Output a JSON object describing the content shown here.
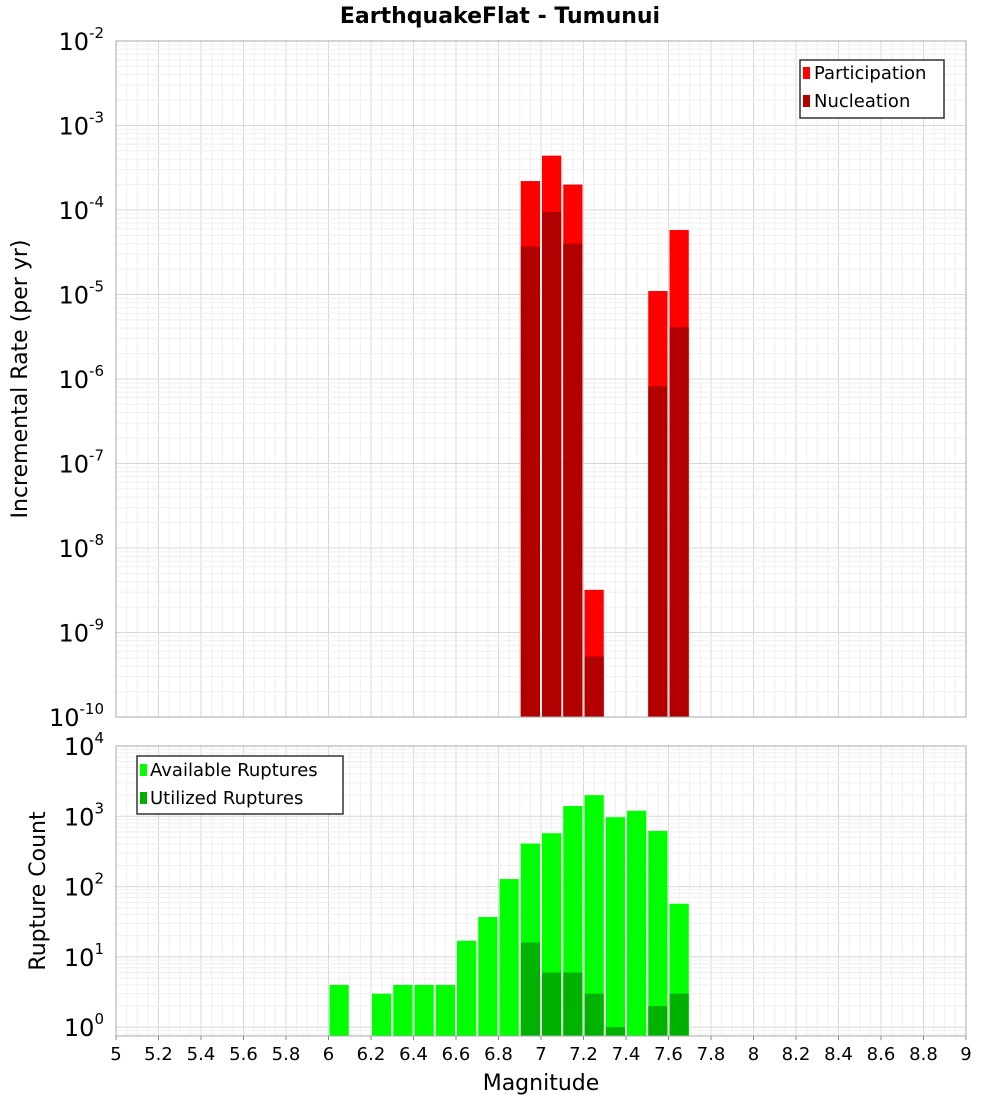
{
  "title": "EarthquakeFlat - Tumunui",
  "chart_data": [
    {
      "type": "bar",
      "ylabel": "Incremental Rate (per yr)",
      "xlabel": "",
      "yscale": "log",
      "ylim": [
        1e-10,
        0.01
      ],
      "xlim": [
        5,
        9
      ],
      "grid": true,
      "legend_position": "top-right",
      "bin_width": 0.1,
      "series": [
        {
          "name": "Participation",
          "color": "#ff0000",
          "x": [
            6.95,
            7.05,
            7.15,
            7.25,
            7.55,
            7.65
          ],
          "values": [
            0.00022,
            0.00044,
            0.0002,
            3.2e-09,
            1.1e-05,
            5.8e-05
          ]
        },
        {
          "name": "Nucleation",
          "color": "#b20000",
          "x": [
            6.95,
            7.05,
            7.15,
            7.25,
            7.55,
            7.65
          ],
          "values": [
            3.7e-05,
            9.5e-05,
            4e-05,
            5.2e-10,
            8.2e-07,
            4.1e-06
          ]
        }
      ],
      "y_ticks": [
        {
          "base": "10",
          "exp": "-10"
        },
        {
          "base": "10",
          "exp": "-9"
        },
        {
          "base": "10",
          "exp": "-8"
        },
        {
          "base": "10",
          "exp": "-7"
        },
        {
          "base": "10",
          "exp": "-6"
        },
        {
          "base": "10",
          "exp": "-5"
        },
        {
          "base": "10",
          "exp": "-4"
        },
        {
          "base": "10",
          "exp": "-3"
        },
        {
          "base": "10",
          "exp": "-2"
        }
      ]
    },
    {
      "type": "bar",
      "ylabel": "Rupture Count",
      "xlabel": "Magnitude",
      "yscale": "log",
      "ylim": [
        0.75,
        10000
      ],
      "xlim": [
        5,
        9
      ],
      "grid": true,
      "legend_position": "top-left",
      "bin_width": 0.1,
      "series": [
        {
          "name": "Available Ruptures",
          "color": "#00ff00",
          "x": [
            6.05,
            6.25,
            6.35,
            6.45,
            6.55,
            6.65,
            6.75,
            6.85,
            6.95,
            7.05,
            7.15,
            7.25,
            7.35,
            7.45,
            7.55,
            7.65
          ],
          "values": [
            4,
            3,
            4,
            4,
            4,
            17,
            37,
            128,
            410,
            575,
            1400,
            2000,
            970,
            1200,
            620,
            57
          ]
        },
        {
          "name": "Utilized Ruptures",
          "color": "#00b200",
          "x": [
            6.95,
            7.05,
            7.15,
            7.25,
            7.35,
            7.55,
            7.65
          ],
          "values": [
            16,
            6,
            6,
            3,
            1,
            2,
            3
          ]
        }
      ],
      "x_ticks": [
        "5",
        "5.2",
        "5.4",
        "5.6",
        "5.8",
        "6",
        "6.2",
        "6.4",
        "6.6",
        "6.8",
        "7",
        "7.2",
        "7.4",
        "7.6",
        "7.8",
        "8",
        "8.2",
        "8.4",
        "8.6",
        "8.8",
        "9"
      ],
      "y_ticks": [
        {
          "base": "10",
          "exp": "0"
        },
        {
          "base": "10",
          "exp": "1"
        },
        {
          "base": "10",
          "exp": "2"
        },
        {
          "base": "10",
          "exp": "3"
        },
        {
          "base": "10",
          "exp": "4"
        }
      ]
    }
  ]
}
